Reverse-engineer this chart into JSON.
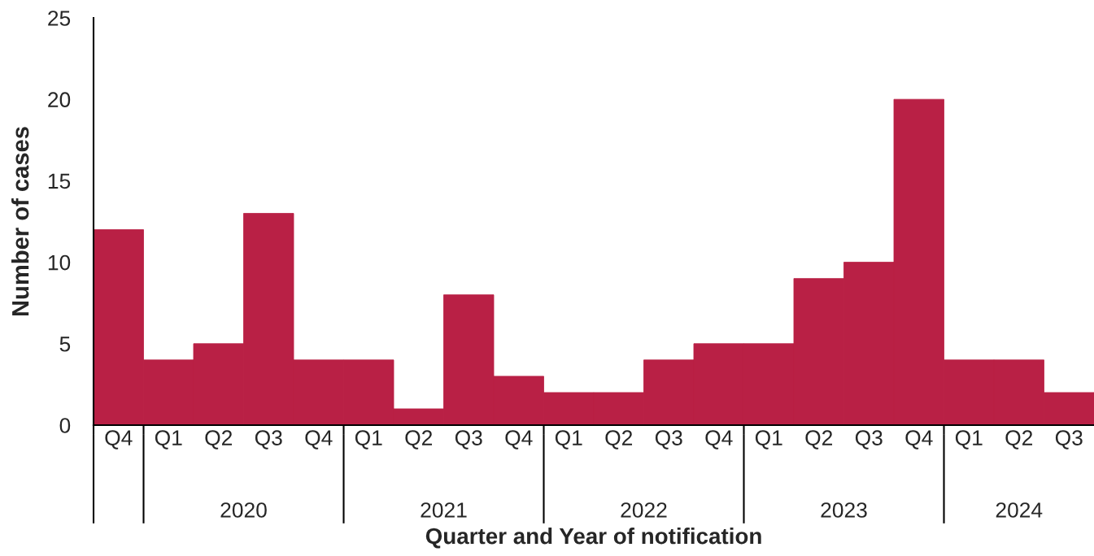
{
  "chart_data": {
    "type": "bar",
    "xlabel": "Quarter and Year of notification",
    "ylabel": "Number of cases",
    "categories": [
      "Q4",
      "Q1",
      "Q2",
      "Q3",
      "Q4",
      "Q1",
      "Q2",
      "Q3",
      "Q4",
      "Q1",
      "Q2",
      "Q3",
      "Q4",
      "Q1",
      "Q2",
      "Q3",
      "Q4",
      "Q1",
      "Q2",
      "Q3"
    ],
    "values": [
      12,
      4,
      5,
      13,
      4,
      4,
      1,
      8,
      3,
      2,
      2,
      4,
      5,
      5,
      9,
      10,
      20,
      4,
      4,
      2
    ],
    "color": "#b92045",
    "ylim": [
      0,
      25
    ],
    "yticks": [
      0,
      5,
      10,
      15,
      20,
      25
    ],
    "x2lim": [
      2019.25,
      2024.25
    ],
    "x2ticks": [
      {
        "value": 2019.25,
        "label": null
      },
      {
        "value": 2019.5,
        "label": null
      },
      2020,
      {
        "value": 2020.5,
        "label": null
      },
      2021,
      {
        "value": 2021.5,
        "label": null
      },
      2022,
      {
        "value": 2022.5,
        "label": null
      },
      2023,
      {
        "value": 2023.5,
        "label": null
      },
      {
        "value": 2023.875,
        "label": "2024"
      }
    ]
  }
}
